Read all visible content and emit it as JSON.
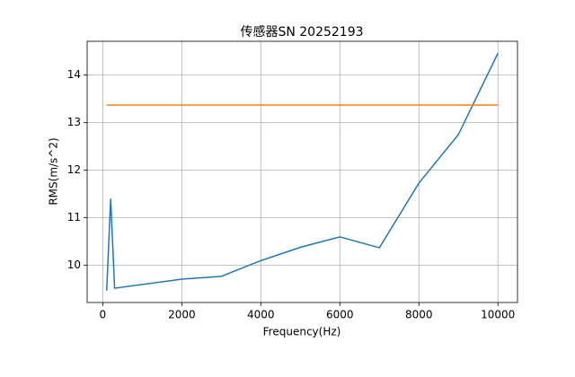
{
  "chart_data": {
    "type": "line",
    "title": "传感器SN 20252193",
    "x_label": "Frequency(Hz)",
    "y_label": "RMS(m/s^2)",
    "xlim": [
      -395,
      10495
    ],
    "ylim": [
      9.22,
      14.71
    ],
    "xticks": [
      0,
      2000,
      4000,
      6000,
      8000,
      10000
    ],
    "yticks": [
      10,
      11,
      12,
      13,
      14
    ],
    "grid": true,
    "series": [
      {
        "color": "#1f77b4",
        "x": [
          100,
          200,
          300,
          2000,
          3000,
          4000,
          5000,
          6000,
          7000,
          8000,
          9000,
          10000
        ],
        "values": [
          9.47,
          11.4,
          9.52,
          9.71,
          9.77,
          10.1,
          10.38,
          10.6,
          10.37,
          11.73,
          12.75,
          14.46
        ]
      },
      {
        "color": "#ff7f0e",
        "x": [
          100,
          10000
        ],
        "values": [
          13.37,
          13.37
        ]
      }
    ]
  }
}
